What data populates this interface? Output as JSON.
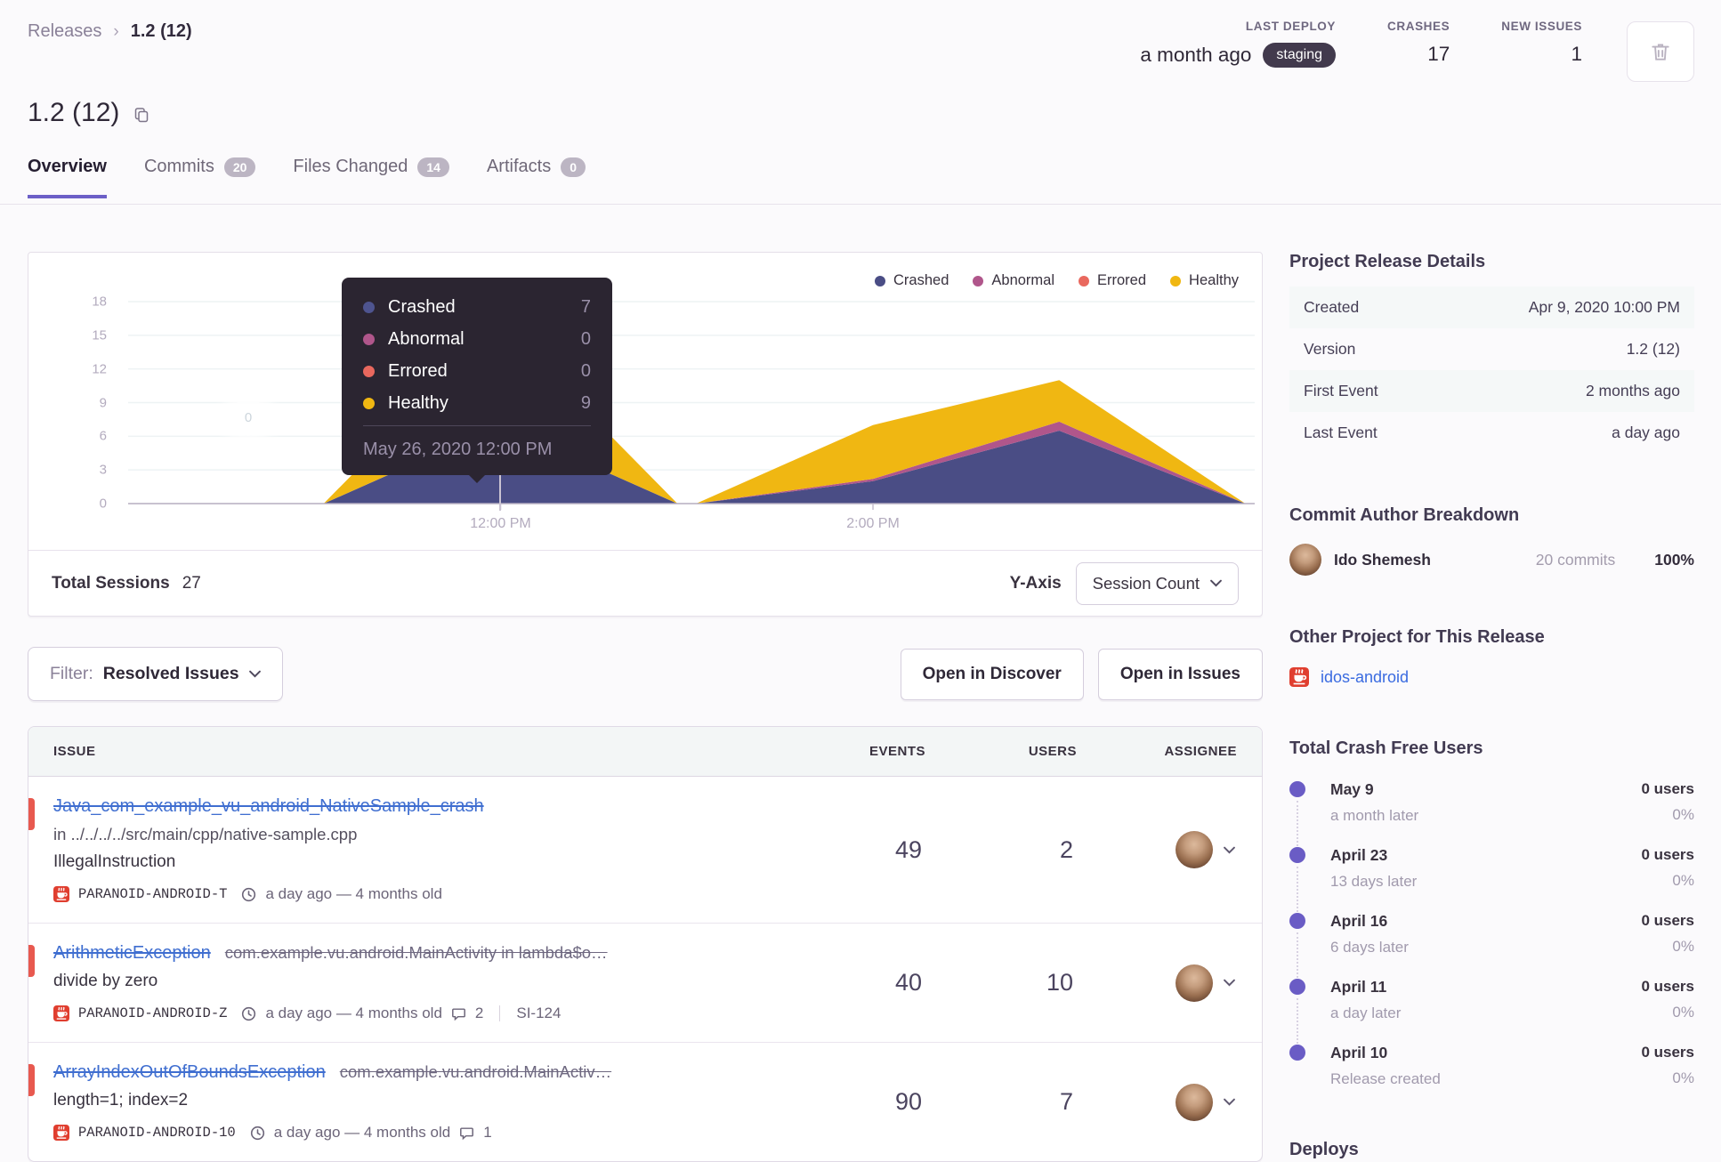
{
  "breadcrumb": {
    "section": "Releases",
    "current": "1.2 (12)"
  },
  "header": {
    "stats": [
      {
        "label": "LAST DEPLOY",
        "value": "a month ago",
        "badge": "staging"
      },
      {
        "label": "CRASHES",
        "value": "17"
      },
      {
        "label": "NEW ISSUES",
        "value": "1"
      }
    ]
  },
  "title": "1.2 (12)",
  "tabs": [
    {
      "label": "Overview",
      "active": true
    },
    {
      "label": "Commits",
      "count": "20"
    },
    {
      "label": "Files Changed",
      "count": "14"
    },
    {
      "label": "Artifacts",
      "count": "0"
    }
  ],
  "chart_data": {
    "type": "area",
    "stacked": true,
    "x_hours": [
      10,
      11.05,
      12,
      12.95,
      13.05,
      14,
      15,
      16
    ],
    "series": [
      {
        "name": "Crashed",
        "color": "#4a4d85",
        "values": [
          0,
          0,
          7,
          0,
          0,
          2,
          6.5,
          0
        ]
      },
      {
        "name": "Abnormal",
        "color": "#b0568b",
        "values": [
          0,
          0,
          0,
          0,
          0,
          0.2,
          0.8,
          0
        ]
      },
      {
        "name": "Errored",
        "color": "#e9685e",
        "values": [
          0,
          0,
          0,
          0,
          0,
          0,
          0,
          0
        ]
      },
      {
        "name": "Healthy",
        "color": "#f0b712",
        "values": [
          0,
          0,
          9,
          0,
          0,
          4.8,
          3.7,
          0
        ]
      }
    ],
    "ylim": [
      0,
      18
    ],
    "yticks": [
      0,
      3,
      6,
      9,
      12,
      15,
      18
    ],
    "xticks": [
      {
        "hour": 12,
        "label": "12:00 PM"
      },
      {
        "hour": 14,
        "label": "2:00 PM"
      }
    ],
    "legend_position": "top-right",
    "watermark": "0"
  },
  "tooltip": {
    "rows": [
      {
        "name": "Crashed",
        "value": "7",
        "color": "#4e548f"
      },
      {
        "name": "Abnormal",
        "value": "0",
        "color": "#b0568b"
      },
      {
        "name": "Errored",
        "value": "0",
        "color": "#e9685e"
      },
      {
        "name": "Healthy",
        "value": "9",
        "color": "#f0b712"
      }
    ],
    "footer": "May 26, 2020 12:00 PM"
  },
  "chart_footer": {
    "total_label": "Total Sessions",
    "total_value": "27",
    "yaxis_label": "Y-Axis",
    "yaxis_value": "Session Count"
  },
  "filter_bar": {
    "filter_label": "Filter:",
    "filter_value": "Resolved Issues",
    "buttons": [
      "Open in Discover",
      "Open in Issues"
    ]
  },
  "issues_table": {
    "columns": [
      "ISSUE",
      "EVENTS",
      "USERS",
      "ASSIGNEE"
    ],
    "rows": [
      {
        "title": "Java_com_example_vu_android_NativeSample_crash",
        "culprit": "in ../../../../src/main/cpp/native-sample.cpp",
        "culprit_inline": false,
        "culprit_strike": false,
        "message": "IllegalInstruction",
        "project": "PARANOID-ANDROID-T",
        "age": "a day ago — 4 months old",
        "comments": "",
        "annotation": "",
        "events": "49",
        "users": "2"
      },
      {
        "title": "ArithmeticException",
        "culprit": "com.example.vu.android.MainActivity in lambda$o…",
        "culprit_inline": true,
        "culprit_strike": true,
        "message": "divide by zero",
        "project": "PARANOID-ANDROID-Z",
        "age": "a day ago — 4 months old",
        "comments": "2",
        "annotation": "SI-124",
        "events": "40",
        "users": "10"
      },
      {
        "title": "ArrayIndexOutOfBoundsException",
        "culprit": "com.example.vu.android.MainActiv…",
        "culprit_inline": true,
        "culprit_strike": true,
        "message": "length=1; index=2",
        "project": "PARANOID-ANDROID-10",
        "age": "a day ago — 4 months old",
        "comments": "1",
        "annotation": "",
        "events": "90",
        "users": "7"
      }
    ]
  },
  "sidebar": {
    "details": {
      "title": "Project Release Details",
      "rows": [
        {
          "label": "Created",
          "value": "Apr 9, 2020 10:00 PM"
        },
        {
          "label": "Version",
          "value": "1.2 (12)"
        },
        {
          "label": "First Event",
          "value": "2 months ago"
        },
        {
          "label": "Last Event",
          "value": "a day ago"
        }
      ]
    },
    "commit_author": {
      "title": "Commit Author Breakdown",
      "name": "Ido Shemesh",
      "commits": "20 commits",
      "percent": "100%"
    },
    "other_project": {
      "title": "Other Project for This Release",
      "link": "idos-android"
    },
    "crash_free": {
      "title": "Total Crash Free Users",
      "items": [
        {
          "date": "May 9",
          "sub": "a month later",
          "users": "0 users",
          "pct": "0%"
        },
        {
          "date": "April 23",
          "sub": "13 days later",
          "users": "0 users",
          "pct": "0%"
        },
        {
          "date": "April 16",
          "sub": "6 days later",
          "users": "0 users",
          "pct": "0%"
        },
        {
          "date": "April 11",
          "sub": "a day later",
          "users": "0 users",
          "pct": "0%"
        },
        {
          "date": "April 10",
          "sub": "Release created",
          "users": "0 users",
          "pct": "0%"
        }
      ]
    },
    "deploys_title": "Deploys"
  },
  "colors": {
    "accent": "#6c5fc7",
    "link": "#3f6ed0",
    "level_error": "#e8594f",
    "tooltip_bg": "#2b2531"
  }
}
